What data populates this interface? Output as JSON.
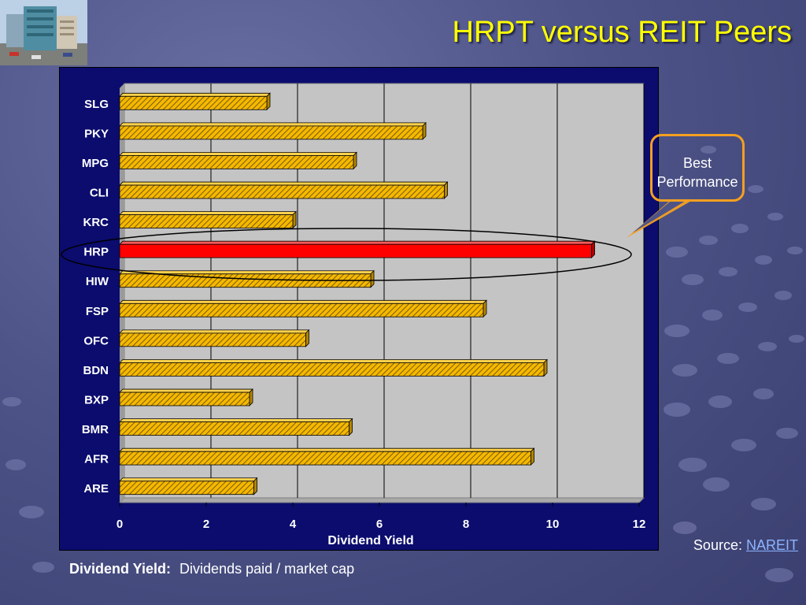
{
  "slide": {
    "title": "HRPT versus REIT Peers",
    "callout": "Best Performance",
    "source_label": "Source:",
    "source_link": "NAREIT",
    "footnote_term": "Dividend Yield:",
    "footnote_text": "Dividends paid / market cap"
  },
  "colors": {
    "title": "#ffff00",
    "bar_fill": "#f5b800",
    "highlight": "#ff0000",
    "callout_border": "#f4a020",
    "plot_bg": "#c0c0c0",
    "chart_bg": "#0b0c6e"
  },
  "chart_data": {
    "type": "bar",
    "orientation": "horizontal",
    "categories": [
      "SLG",
      "PKY",
      "MPG",
      "CLI",
      "KRC",
      "HRP",
      "HIW",
      "FSP",
      "OFC",
      "BDN",
      "BXP",
      "BMR",
      "AFR",
      "ARE"
    ],
    "values": [
      3.4,
      7.0,
      5.4,
      7.5,
      4.0,
      10.9,
      5.8,
      8.4,
      4.3,
      9.8,
      3.0,
      5.3,
      9.5,
      3.1
    ],
    "highlight": "HRP",
    "xlabel": "Dividend Yield",
    "ylabel": "",
    "xlim": [
      0,
      12
    ],
    "xticks": [
      "0",
      "2",
      "4",
      "6",
      "8",
      "10",
      "12"
    ],
    "grid": true
  }
}
